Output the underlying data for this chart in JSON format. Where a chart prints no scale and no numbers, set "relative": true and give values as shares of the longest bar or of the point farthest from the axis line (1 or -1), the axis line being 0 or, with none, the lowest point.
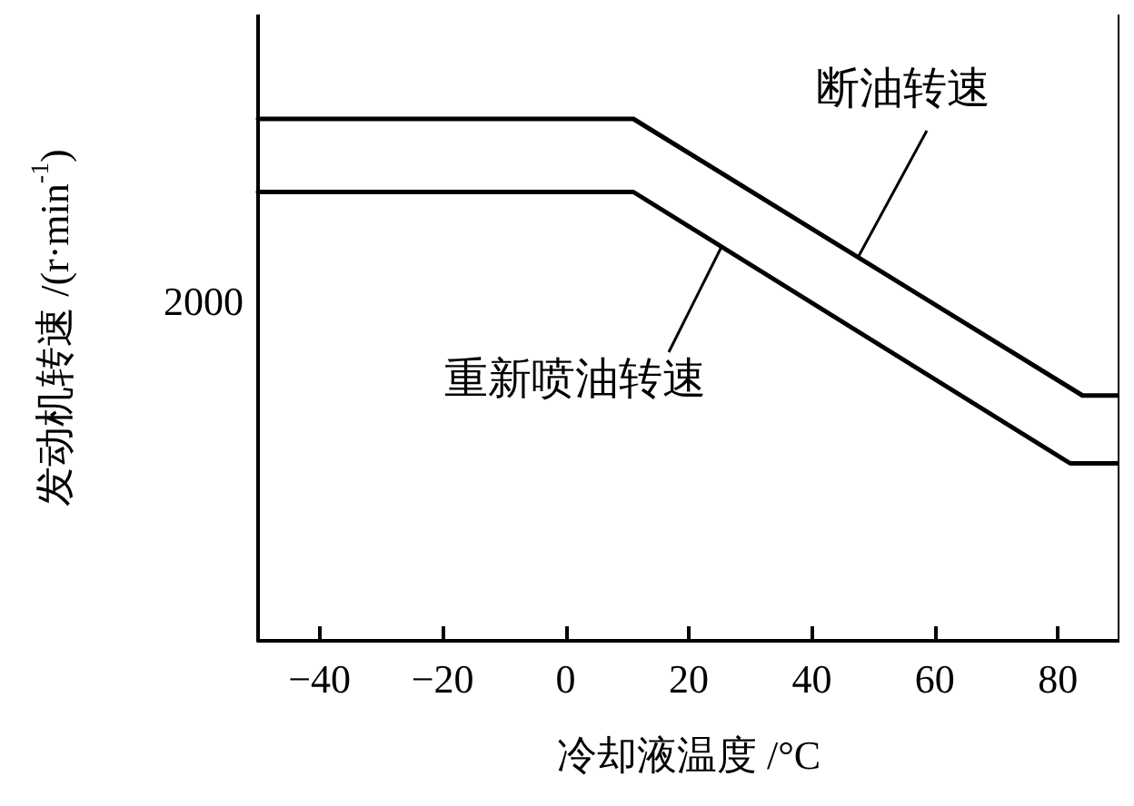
{
  "chart_data": {
    "type": "line",
    "relative": true,
    "xlabel": "冷却液温度 /°C",
    "ylabel": "发动机转速 /(r·min$^{-1}$)",
    "xlim": [
      -50,
      90
    ],
    "xticks": [
      {
        "value": -40,
        "label": "−40"
      },
      {
        "value": -20,
        "label": "−20"
      },
      0,
      20,
      40,
      60,
      80
    ],
    "annotations": [
      "2000"
    ],
    "series": [
      {
        "name": "断油转速",
        "color": "#000000",
        "x": [
          -50,
          11,
          84,
          90
        ],
        "values": [
          1,
          1,
          0.47,
          0.47
        ]
      },
      {
        "name": "重新喷油转速",
        "color": "#000000",
        "x": [
          -50,
          11,
          82,
          90
        ],
        "values": [
          0.86,
          0.86,
          0.34,
          0.34
        ]
      }
    ],
    "grid": false,
    "legend": false,
    "marker": "none",
    "line_style": "solid"
  }
}
